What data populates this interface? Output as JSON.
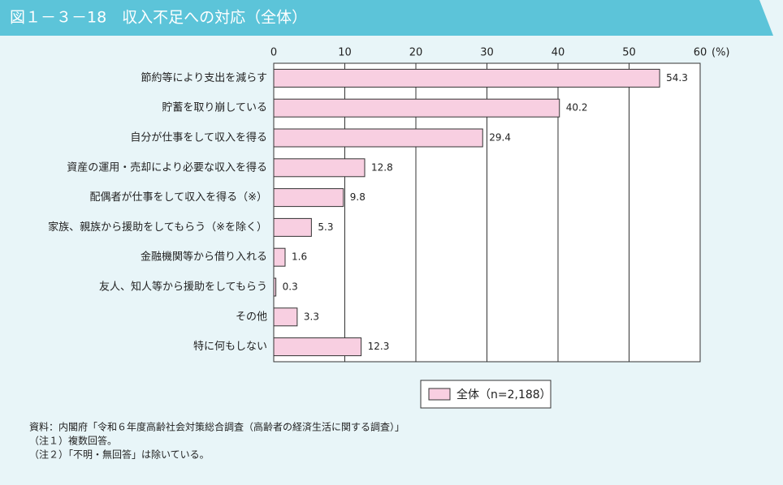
{
  "chart_data": {
    "type": "barh",
    "title": "図１－３－18　収入不足への対応（全体）",
    "xlabel": "(%)",
    "categories": [
      "節約等により支出を減らす",
      "貯蓄を取り崩している",
      "自分が仕事をして収入を得る",
      "資産の運用・売却により必要な収入を得る",
      "配偶者が仕事をして収入を得る（※）",
      "家族、親族から援助をしてもらう（※を除く）",
      "金融機関等から借り入れる",
      "友人、知人等から援助をしてもらう",
      "その他",
      "特に何もしない"
    ],
    "series": [
      {
        "name": "全体（n=2,188）",
        "color": "#f8cfe1",
        "values": [
          54.3,
          40.2,
          29.4,
          12.8,
          9.8,
          5.3,
          1.6,
          0.3,
          3.3,
          12.3
        ]
      }
    ],
    "xlim": [
      0,
      60
    ],
    "xticks": [
      0,
      10,
      20,
      30,
      40,
      50,
      60
    ],
    "grid": true,
    "notes": [
      "資料：内閣府「令和６年度高齢社会対策総合調査（高齢者の経済生活に関する調査）」",
      "（注１）複数回答。",
      "（注２）「不明・無回答」は除いている。"
    ]
  }
}
